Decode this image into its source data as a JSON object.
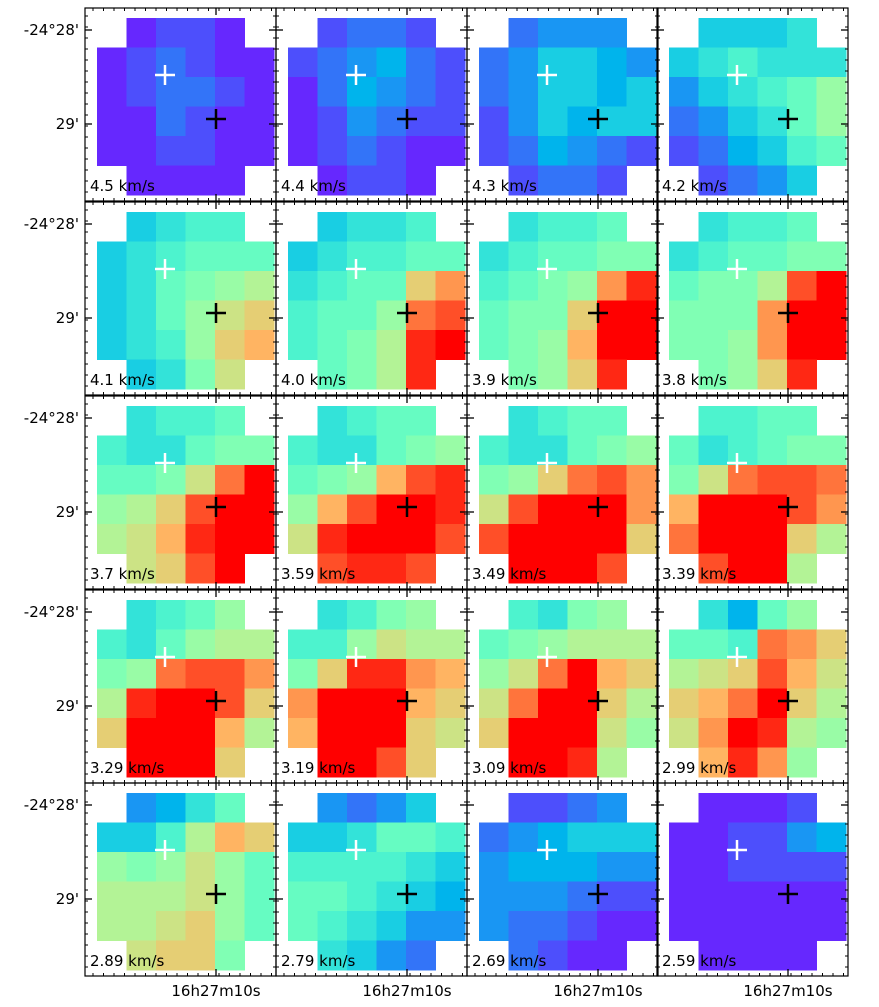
{
  "chart_data": {
    "type": "channel-map",
    "colormap": "rainbow",
    "vlim": [
      0,
      1
    ],
    "ytick_labels": [
      "-24°28'",
      "29'"
    ],
    "xtick_label": "16h27m10s",
    "panels": [
      {
        "label": "4.5 km/s",
        "grid": [
          [
            null,
            0.05,
            0.1,
            0.1,
            0.05,
            null
          ],
          [
            0.05,
            0.1,
            0.15,
            0.1,
            0.05,
            0.05
          ],
          [
            0.05,
            0.1,
            0.15,
            0.15,
            0.1,
            0.05
          ],
          [
            0.05,
            0.05,
            0.15,
            0.1,
            0.05,
            0.05
          ],
          [
            0.05,
            0.05,
            0.1,
            0.1,
            0.05,
            0.05
          ],
          [
            null,
            0.05,
            0.05,
            0.05,
            0.05,
            null
          ]
        ]
      },
      {
        "label": "4.4 km/s",
        "grid": [
          [
            null,
            0.1,
            0.15,
            0.15,
            0.1,
            null
          ],
          [
            0.1,
            0.15,
            0.2,
            0.25,
            0.15,
            0.1
          ],
          [
            0.05,
            0.15,
            0.25,
            0.2,
            0.15,
            0.1
          ],
          [
            0.05,
            0.1,
            0.2,
            0.15,
            0.1,
            0.1
          ],
          [
            0.05,
            0.1,
            0.15,
            0.1,
            0.05,
            0.05
          ],
          [
            null,
            0.05,
            0.1,
            0.1,
            0.05,
            null
          ]
        ]
      },
      {
        "label": "4.3 km/s",
        "grid": [
          [
            null,
            0.15,
            0.2,
            0.2,
            0.2,
            null
          ],
          [
            0.15,
            0.2,
            0.3,
            0.3,
            0.25,
            0.2
          ],
          [
            0.15,
            0.2,
            0.3,
            0.3,
            0.25,
            0.3
          ],
          [
            0.1,
            0.2,
            0.3,
            0.25,
            0.3,
            0.3
          ],
          [
            0.1,
            0.15,
            0.25,
            0.2,
            0.15,
            0.1
          ],
          [
            null,
            0.1,
            0.15,
            0.15,
            0.1,
            null
          ]
        ]
      },
      {
        "label": "4.2 km/s",
        "grid": [
          [
            null,
            0.3,
            0.3,
            0.3,
            0.35,
            null
          ],
          [
            0.3,
            0.35,
            0.4,
            0.35,
            0.35,
            0.35
          ],
          [
            0.2,
            0.3,
            0.35,
            0.4,
            0.45,
            0.55
          ],
          [
            0.15,
            0.2,
            0.3,
            0.35,
            0.45,
            0.55
          ],
          [
            0.1,
            0.15,
            0.25,
            0.3,
            0.4,
            0.45
          ],
          [
            null,
            0.1,
            0.15,
            0.2,
            0.3,
            null
          ]
        ]
      },
      {
        "label": "4.1 km/s",
        "grid": [
          [
            null,
            0.3,
            0.35,
            0.4,
            0.4,
            null
          ],
          [
            0.3,
            0.35,
            0.4,
            0.45,
            0.45,
            0.45
          ],
          [
            0.3,
            0.35,
            0.45,
            0.5,
            0.55,
            0.6
          ],
          [
            0.3,
            0.35,
            0.45,
            0.55,
            0.65,
            0.7
          ],
          [
            0.3,
            0.35,
            0.4,
            0.55,
            0.7,
            0.75
          ],
          [
            null,
            0.3,
            0.35,
            0.5,
            0.65,
            null
          ]
        ]
      },
      {
        "label": "4.0 km/s",
        "grid": [
          [
            null,
            0.3,
            0.35,
            0.35,
            0.4,
            null
          ],
          [
            0.3,
            0.35,
            0.4,
            0.4,
            0.45,
            0.45
          ],
          [
            0.35,
            0.4,
            0.45,
            0.45,
            0.7,
            0.8
          ],
          [
            0.4,
            0.45,
            0.45,
            0.55,
            0.85,
            0.9
          ],
          [
            0.4,
            0.45,
            0.5,
            0.6,
            0.95,
            1
          ],
          [
            null,
            0.45,
            0.5,
            0.6,
            0.95,
            null
          ]
        ]
      },
      {
        "label": "3.9 km/s",
        "grid": [
          [
            null,
            0.35,
            0.4,
            0.4,
            0.45,
            null
          ],
          [
            0.35,
            0.4,
            0.45,
            0.45,
            0.5,
            0.5
          ],
          [
            0.4,
            0.45,
            0.5,
            0.55,
            0.8,
            0.95
          ],
          [
            0.45,
            0.5,
            0.5,
            0.7,
            1,
            1
          ],
          [
            0.45,
            0.5,
            0.55,
            0.75,
            1,
            1
          ],
          [
            null,
            0.5,
            0.55,
            0.7,
            0.95,
            null
          ]
        ]
      },
      {
        "label": "3.8 km/s",
        "grid": [
          [
            null,
            0.35,
            0.4,
            0.4,
            0.45,
            null
          ],
          [
            0.35,
            0.4,
            0.45,
            0.45,
            0.5,
            0.5
          ],
          [
            0.45,
            0.5,
            0.5,
            0.6,
            0.9,
            1
          ],
          [
            0.5,
            0.5,
            0.5,
            0.8,
            1,
            1
          ],
          [
            0.5,
            0.5,
            0.55,
            0.8,
            1,
            1
          ],
          [
            null,
            0.5,
            0.55,
            0.7,
            0.95,
            null
          ]
        ]
      },
      {
        "label": "3.7 km/s",
        "grid": [
          [
            null,
            0.35,
            0.4,
            0.4,
            0.45,
            null
          ],
          [
            0.4,
            0.35,
            0.35,
            0.45,
            0.5,
            0.5
          ],
          [
            0.45,
            0.45,
            0.5,
            0.65,
            0.85,
            1
          ],
          [
            0.55,
            0.6,
            0.7,
            0.9,
            1,
            1
          ],
          [
            0.6,
            0.65,
            0.75,
            0.95,
            1,
            1
          ],
          [
            null,
            0.65,
            0.7,
            0.9,
            1,
            null
          ]
        ]
      },
      {
        "label": "3.59 km/s",
        "grid": [
          [
            null,
            0.35,
            0.4,
            0.45,
            0.45,
            null
          ],
          [
            0.4,
            0.35,
            0.35,
            0.45,
            0.5,
            0.55
          ],
          [
            0.45,
            0.5,
            0.55,
            0.75,
            0.9,
            0.95
          ],
          [
            0.55,
            0.75,
            0.9,
            1,
            1,
            0.95
          ],
          [
            0.65,
            0.95,
            1,
            1,
            1,
            0.9
          ],
          [
            null,
            0.9,
            0.95,
            0.95,
            0.9,
            null
          ]
        ]
      },
      {
        "label": "3.49 km/s",
        "grid": [
          [
            null,
            0.35,
            0.4,
            0.45,
            0.45,
            null
          ],
          [
            0.4,
            0.35,
            0.35,
            0.45,
            0.5,
            0.55
          ],
          [
            0.5,
            0.55,
            0.7,
            0.85,
            0.9,
            0.8
          ],
          [
            0.65,
            0.9,
            1,
            1,
            1,
            0.8
          ],
          [
            0.9,
            1,
            1,
            1,
            1,
            0.7
          ],
          [
            null,
            1,
            1,
            1,
            0.9,
            null
          ]
        ]
      },
      {
        "label": "3.39 km/s",
        "grid": [
          [
            null,
            0.4,
            0.4,
            0.45,
            0.45,
            null
          ],
          [
            0.45,
            0.35,
            0.4,
            0.45,
            0.5,
            0.5
          ],
          [
            0.5,
            0.65,
            0.85,
            0.9,
            0.9,
            0.85
          ],
          [
            0.75,
            1,
            1,
            1,
            0.9,
            0.8
          ],
          [
            0.85,
            1,
            1,
            1,
            0.7,
            0.6
          ],
          [
            null,
            0.9,
            1,
            1,
            0.6,
            null
          ]
        ]
      },
      {
        "label": "3.29 km/s",
        "grid": [
          [
            null,
            0.35,
            0.4,
            0.45,
            0.55,
            null
          ],
          [
            0.4,
            0.35,
            0.45,
            0.55,
            0.6,
            0.6
          ],
          [
            0.5,
            0.55,
            0.85,
            0.9,
            0.9,
            0.8
          ],
          [
            0.6,
            0.95,
            1,
            1,
            0.9,
            0.7
          ],
          [
            0.7,
            1,
            1,
            1,
            0.75,
            0.6
          ],
          [
            null,
            1,
            1,
            1,
            0.7,
            null
          ]
        ]
      },
      {
        "label": "3.19 km/s",
        "grid": [
          [
            null,
            0.35,
            0.4,
            0.5,
            0.55,
            null
          ],
          [
            0.4,
            0.4,
            0.55,
            0.65,
            0.6,
            0.6
          ],
          [
            0.5,
            0.7,
            0.95,
            0.95,
            0.8,
            0.75
          ],
          [
            0.8,
            1,
            1,
            1,
            0.75,
            0.7
          ],
          [
            0.75,
            1,
            1,
            1,
            0.7,
            0.65
          ],
          [
            null,
            1,
            1,
            0.9,
            0.7,
            null
          ]
        ]
      },
      {
        "label": "3.09 km/s",
        "grid": [
          [
            null,
            0.4,
            0.35,
            0.5,
            0.55,
            null
          ],
          [
            0.45,
            0.5,
            0.55,
            0.6,
            0.6,
            0.6
          ],
          [
            0.55,
            0.65,
            0.85,
            1,
            0.75,
            0.7
          ],
          [
            0.65,
            0.85,
            1,
            1,
            0.7,
            0.6
          ],
          [
            0.7,
            1,
            1,
            1,
            0.65,
            0.55
          ],
          [
            null,
            1,
            1,
            0.95,
            0.6,
            null
          ]
        ]
      },
      {
        "label": "2.99 km/s",
        "grid": [
          [
            null,
            0.35,
            0.25,
            0.45,
            0.55,
            null
          ],
          [
            0.45,
            0.45,
            0.4,
            0.85,
            0.8,
            0.7
          ],
          [
            0.6,
            0.65,
            0.7,
            0.9,
            0.75,
            0.65
          ],
          [
            0.7,
            0.75,
            0.85,
            1,
            0.7,
            0.6
          ],
          [
            0.65,
            0.8,
            1,
            0.95,
            0.6,
            0.55
          ],
          [
            null,
            0.75,
            0.95,
            0.8,
            0.55,
            null
          ]
        ]
      },
      {
        "label": "2.89 km/s",
        "grid": [
          [
            null,
            0.2,
            0.25,
            0.35,
            0.45,
            null
          ],
          [
            0.3,
            0.3,
            0.4,
            0.6,
            0.75,
            0.7
          ],
          [
            0.55,
            0.5,
            0.55,
            0.65,
            0.55,
            0.45
          ],
          [
            0.6,
            0.6,
            0.6,
            0.65,
            0.55,
            0.45
          ],
          [
            0.6,
            0.6,
            0.65,
            0.7,
            0.55,
            0.45
          ],
          [
            null,
            0.65,
            0.7,
            0.7,
            0.5,
            null
          ]
        ]
      },
      {
        "label": "2.79 km/s",
        "grid": [
          [
            null,
            0.2,
            0.15,
            0.2,
            0.3,
            null
          ],
          [
            0.3,
            0.3,
            0.35,
            0.45,
            0.45,
            0.4
          ],
          [
            0.4,
            0.4,
            0.4,
            0.4,
            0.35,
            0.3
          ],
          [
            0.45,
            0.45,
            0.4,
            0.35,
            0.3,
            0.25
          ],
          [
            0.45,
            0.4,
            0.35,
            0.3,
            0.2,
            0.2
          ],
          [
            null,
            0.35,
            0.3,
            0.2,
            0.15,
            null
          ]
        ]
      },
      {
        "label": "2.69 km/s",
        "grid": [
          [
            null,
            0.1,
            0.1,
            0.15,
            0.2,
            null
          ],
          [
            0.15,
            0.2,
            0.25,
            0.3,
            0.3,
            0.3
          ],
          [
            0.2,
            0.25,
            0.25,
            0.25,
            0.2,
            0.2
          ],
          [
            0.2,
            0.2,
            0.2,
            0.15,
            0.1,
            0.1
          ],
          [
            0.2,
            0.15,
            0.15,
            0.1,
            0.05,
            0.05
          ],
          [
            null,
            0.15,
            0.1,
            0.05,
            0.05,
            null
          ]
        ]
      },
      {
        "label": "2.59 km/s",
        "grid": [
          [
            null,
            0.05,
            0.05,
            0.05,
            0.1,
            null
          ],
          [
            0.05,
            0.05,
            0.1,
            0.1,
            0.2,
            0.25
          ],
          [
            0.05,
            0.05,
            0.1,
            0.1,
            0.1,
            0.1
          ],
          [
            0.05,
            0.05,
            0.05,
            0.05,
            0.05,
            0.05
          ],
          [
            0.05,
            0.05,
            0.05,
            0.05,
            0.05,
            0.05
          ],
          [
            null,
            0.05,
            0.05,
            0.05,
            0.05,
            null
          ]
        ]
      }
    ]
  }
}
